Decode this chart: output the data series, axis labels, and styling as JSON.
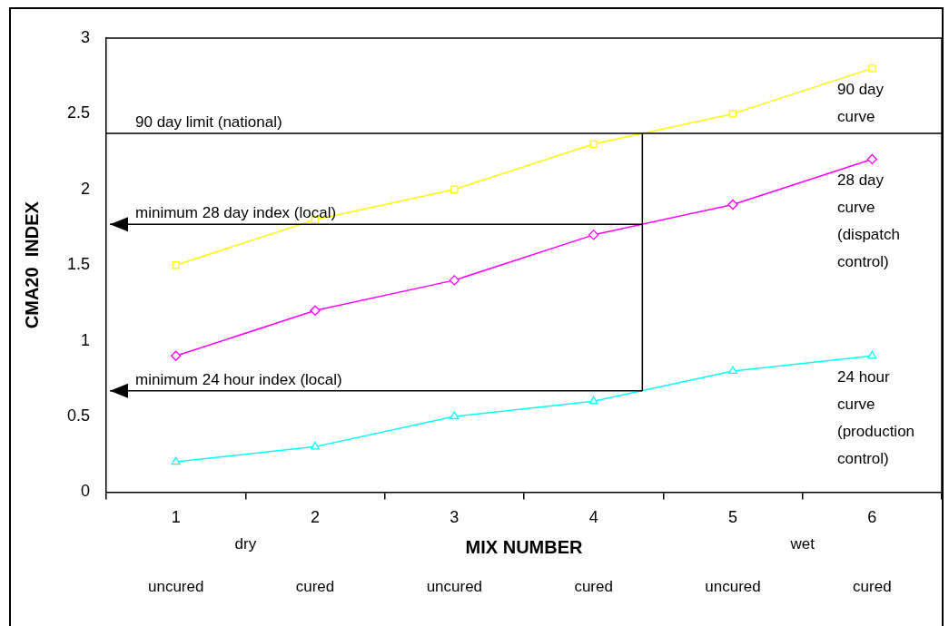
{
  "chart_data": {
    "type": "line",
    "xlabel": "MIX NUMBER",
    "ylabel": "CMA20  INDEX",
    "categories": [
      "1",
      "2",
      "3",
      "4",
      "5",
      "6"
    ],
    "series": [
      {
        "name": "90 day curve",
        "color": "#ffff00",
        "marker": "square",
        "values": [
          1.5,
          1.8,
          2.0,
          2.3,
          2.5,
          2.8
        ]
      },
      {
        "name": "28 day curve (dispatch control)",
        "color": "#ff00ff",
        "marker": "diamond",
        "values": [
          0.9,
          1.2,
          1.4,
          1.7,
          1.9,
          2.2
        ]
      },
      {
        "name": "24 hour curve (production control)",
        "color": "#00ffff",
        "marker": "triangle",
        "values": [
          0.2,
          0.3,
          0.5,
          0.6,
          0.8,
          0.9
        ]
      }
    ],
    "ylim": [
      0,
      3
    ],
    "yticks": [
      0,
      0.5,
      1,
      1.5,
      2,
      2.5,
      3
    ],
    "grid": false,
    "legend": false,
    "ref_lines": [
      {
        "axis": "y",
        "value": 2.37,
        "label": "90 day limit (national)",
        "color": "#000000"
      },
      {
        "axis": "y",
        "value": 1.77,
        "label": "minimum 28 day index (local)",
        "color": "#000000"
      },
      {
        "axis": "y",
        "value": 0.67,
        "label": "minimum 24 hour index (local)",
        "color": "#000000"
      }
    ],
    "annotations": [
      "dry",
      "wet",
      "uncured",
      "cured",
      "uncured",
      "cured",
      "uncured",
      "cured"
    ]
  }
}
